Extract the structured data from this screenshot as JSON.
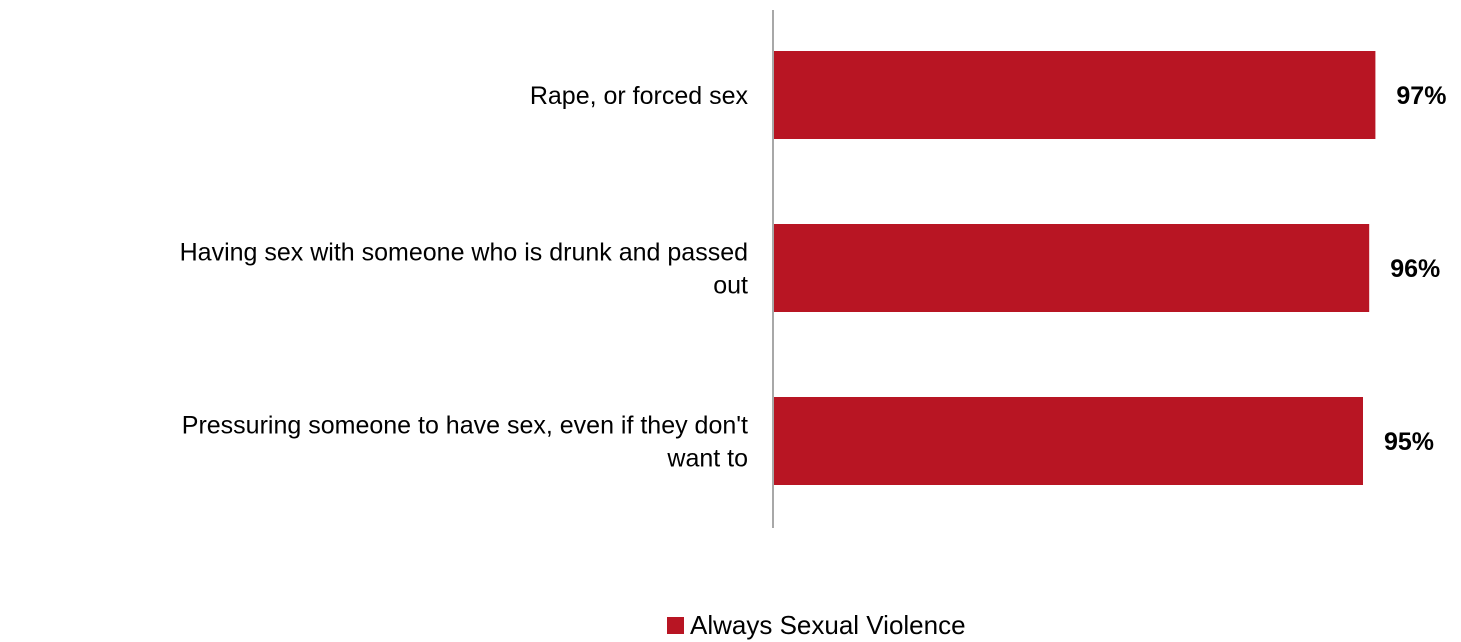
{
  "chart_data": {
    "type": "bar",
    "orientation": "horizontal",
    "categories": [
      [
        "Rape, or forced sex"
      ],
      [
        "Having sex with someone who is drunk and passed",
        "out"
      ],
      [
        "Pressuring someone to have sex, even if they don't",
        "want to"
      ]
    ],
    "series": [
      {
        "name": "Always Sexual Violence",
        "values": [
          97,
          96,
          95
        ],
        "labels": [
          "97%",
          "96%",
          "95%"
        ],
        "color": "#B81523"
      }
    ],
    "xlim": [
      0,
      100
    ],
    "grid": false,
    "legend": "bottom-center"
  },
  "legend": {
    "label": "Always Sexual Violence",
    "color": "#B81523"
  },
  "axis_color": "#8C8C8C"
}
